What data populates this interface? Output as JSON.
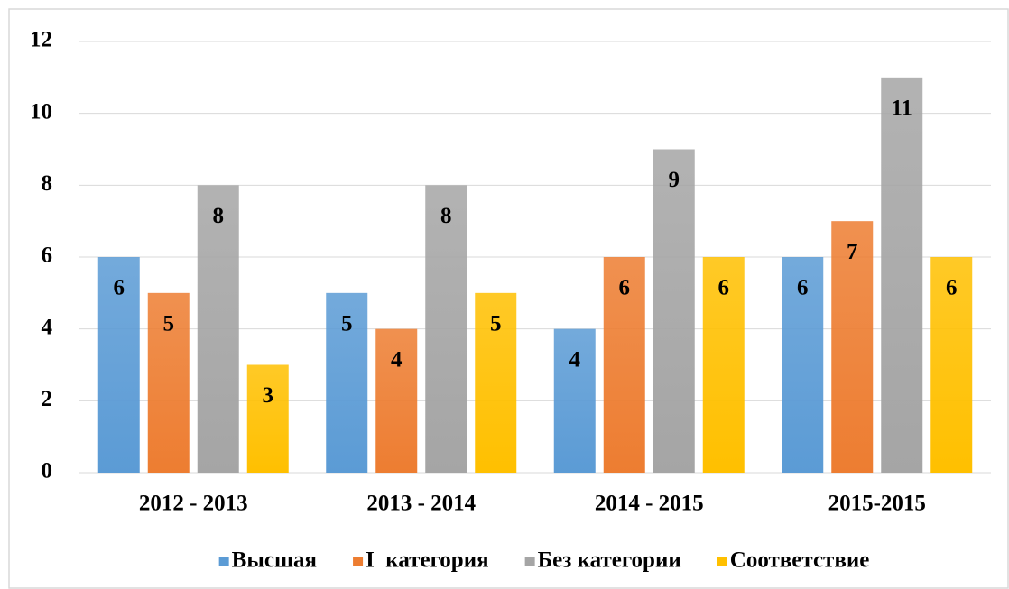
{
  "chart_data": {
    "type": "bar",
    "categories": [
      "2012 - 2013",
      "2013 - 2014",
      "2014 - 2015",
      "2015-2015"
    ],
    "series": [
      {
        "name": "Высшая",
        "color": "#5b9bd5",
        "values": [
          6,
          5,
          4,
          6
        ]
      },
      {
        "name": "I  категория",
        "color": "#ed7d31",
        "values": [
          5,
          4,
          6,
          7
        ]
      },
      {
        "name": "Без категории",
        "color": "#a5a5a5",
        "values": [
          8,
          8,
          9,
          11
        ]
      },
      {
        "name": "Соответствие",
        "color": "#ffc000",
        "values": [
          3,
          5,
          6,
          6
        ]
      }
    ],
    "ylim": [
      0,
      12
    ],
    "yticks": [
      0,
      2,
      4,
      6,
      8,
      10,
      12
    ],
    "grid": true,
    "legend": "bottom"
  }
}
